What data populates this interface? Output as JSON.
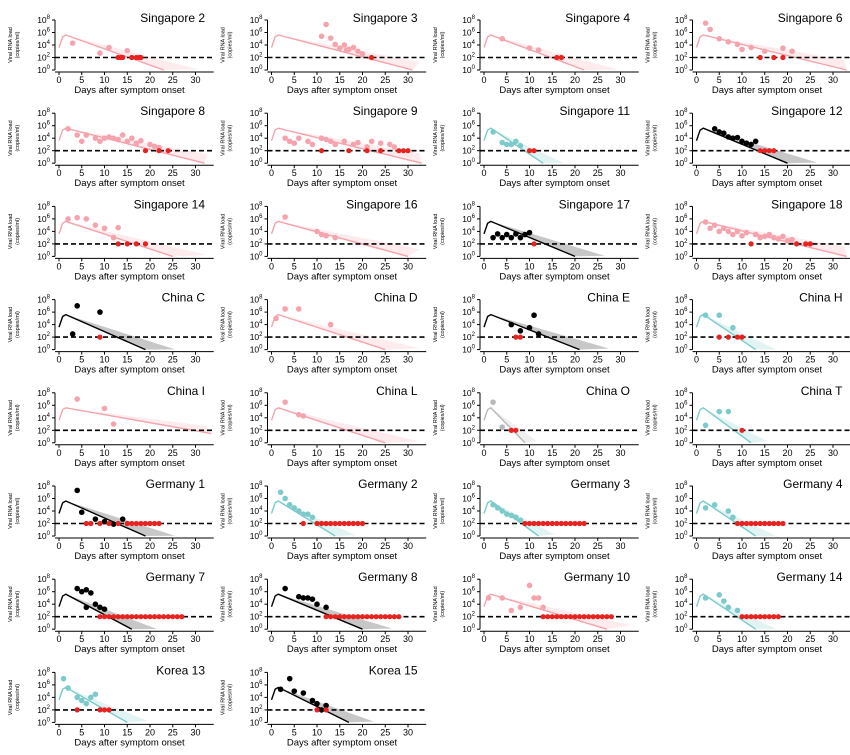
{
  "chart_data": {
    "type": "scatter",
    "title": "",
    "xlabel": "Days after symptom onset",
    "ylabel": "Viral RNA load",
    "ylabel_unit": "(copies/ml)",
    "xlim": [
      0,
      33
    ],
    "ylim_log10": [
      0,
      8
    ],
    "x_ticks": [
      0,
      5,
      10,
      15,
      20,
      25,
      30
    ],
    "y_ticks_log10": [
      0,
      2,
      4,
      6,
      8
    ],
    "y_tick_base": "10",
    "detection_limit_log10": 2,
    "colors": {
      "pink": "#f5a3ac",
      "teal": "#7ccaca",
      "black": "#000000",
      "grey": "#b8b8b8",
      "censored": "#e8231f"
    },
    "panels": [
      {
        "name": "Singapore 2",
        "color": "pink",
        "end": 23,
        "points": [
          [
            3,
            4.3
          ],
          [
            9,
            2.7
          ],
          [
            11,
            3.6
          ],
          [
            15,
            3.1
          ]
        ],
        "censored": [
          13,
          13.6,
          14,
          16,
          17,
          17.6,
          18
        ]
      },
      {
        "name": "Singapore 3",
        "color": "pink",
        "end": 31,
        "points": [
          [
            12,
            7.3
          ],
          [
            11,
            5.4
          ],
          [
            13,
            5.1
          ],
          [
            14,
            4.1
          ],
          [
            15,
            3.5
          ],
          [
            16,
            4
          ],
          [
            16.5,
            3.2
          ],
          [
            17,
            3.3
          ],
          [
            18,
            3.6
          ],
          [
            19,
            3
          ],
          [
            20,
            2.6
          ]
        ],
        "censored": [
          22
        ]
      },
      {
        "name": "Singapore 4",
        "color": "pink",
        "end": 22,
        "points": [
          [
            4,
            5
          ],
          [
            10,
            3.5
          ],
          [
            12,
            3.2
          ]
        ],
        "censored": [
          16,
          17
        ]
      },
      {
        "name": "Singapore 6",
        "color": "pink",
        "end": 33,
        "points": [
          [
            2,
            7.5
          ],
          [
            3,
            6.5
          ],
          [
            5,
            5
          ],
          [
            7,
            4.5
          ],
          [
            9,
            4.1
          ],
          [
            10,
            3.3
          ],
          [
            12,
            3.6
          ],
          [
            15,
            3
          ],
          [
            19,
            3.5
          ],
          [
            21,
            3
          ]
        ],
        "censored": [
          14,
          17,
          19
        ]
      },
      {
        "name": "Singapore 8",
        "color": "pink",
        "end": 32,
        "points": [
          [
            2,
            5.5
          ],
          [
            4,
            4.5
          ],
          [
            5,
            3.5
          ],
          [
            6,
            4.5
          ],
          [
            8,
            4
          ],
          [
            9,
            3.5
          ],
          [
            10,
            4
          ],
          [
            11,
            4.2
          ],
          [
            12,
            4
          ],
          [
            13,
            3.8
          ],
          [
            14,
            4.5
          ],
          [
            15,
            3.5
          ],
          [
            16,
            4
          ],
          [
            17,
            3.2
          ],
          [
            18,
            3.6
          ],
          [
            20,
            3
          ],
          [
            21,
            2.7
          ],
          [
            22,
            2.5
          ]
        ],
        "censored": [
          19,
          22,
          24
        ]
      },
      {
        "name": "Singapore 9",
        "color": "pink",
        "end": 33,
        "points": [
          [
            3,
            4
          ],
          [
            4,
            3.5
          ],
          [
            5,
            3.2
          ],
          [
            6,
            4
          ],
          [
            8,
            3.5
          ],
          [
            9,
            3
          ],
          [
            11,
            4
          ],
          [
            12,
            3.8
          ],
          [
            13,
            3.5
          ],
          [
            14,
            3
          ],
          [
            16,
            3.5
          ],
          [
            18,
            3
          ],
          [
            19,
            3.3
          ],
          [
            21,
            2.6
          ],
          [
            22,
            3.5
          ],
          [
            24,
            3.2
          ],
          [
            26,
            3
          ],
          [
            27,
            2.6
          ]
        ],
        "censored": [
          11,
          17,
          21,
          24,
          28,
          29,
          30
        ]
      },
      {
        "name": "Singapore 11",
        "color": "teal",
        "end": 13,
        "points": [
          [
            2,
            5
          ],
          [
            4,
            3.3
          ],
          [
            5,
            3
          ],
          [
            6,
            3
          ],
          [
            7,
            3.5
          ],
          [
            8,
            2.8
          ]
        ],
        "censored": [
          10,
          11
        ]
      },
      {
        "name": "Singapore 12",
        "color": "black",
        "end": 20,
        "points": [
          [
            4,
            5.5
          ],
          [
            5,
            5
          ],
          [
            6,
            4.8
          ],
          [
            7,
            4.2
          ],
          [
            8,
            4
          ],
          [
            9,
            4.1
          ],
          [
            10,
            3.5
          ],
          [
            11,
            3.2
          ],
          [
            12,
            3
          ],
          [
            13,
            3.5
          ]
        ],
        "censored": [
          14,
          15,
          16,
          17
        ]
      },
      {
        "name": "Singapore 14",
        "color": "pink",
        "end": 25,
        "points": [
          [
            2,
            6
          ],
          [
            4,
            6.2
          ],
          [
            6,
            6
          ],
          [
            8,
            5
          ],
          [
            10,
            4.5
          ],
          [
            12,
            3
          ],
          [
            13,
            4.6
          ]
        ],
        "censored": [
          13,
          15,
          17,
          19
        ]
      },
      {
        "name": "Singapore 16",
        "color": "pink",
        "end": 30,
        "points": [
          [
            3,
            6.3
          ],
          [
            10,
            4
          ],
          [
            11,
            3.5
          ],
          [
            12,
            3.3
          ],
          [
            14,
            3
          ]
        ],
        "censored": []
      },
      {
        "name": "Singapore 17",
        "color": "black",
        "end": 20,
        "points": [
          [
            2,
            3
          ],
          [
            3,
            3.6
          ],
          [
            4,
            3
          ],
          [
            5,
            3.5
          ],
          [
            6,
            3
          ],
          [
            7,
            3.6
          ],
          [
            8,
            3
          ],
          [
            9,
            3.5
          ],
          [
            10,
            3.8
          ]
        ],
        "censored": [
          11
        ]
      },
      {
        "name": "Singapore 18",
        "color": "pink",
        "end": 33,
        "points": [
          [
            2,
            5.5
          ],
          [
            3,
            4.5
          ],
          [
            4,
            5
          ],
          [
            5,
            4
          ],
          [
            6,
            4.5
          ],
          [
            7,
            4
          ],
          [
            8,
            3.5
          ],
          [
            9,
            4
          ],
          [
            10,
            3.3
          ],
          [
            11,
            3.8
          ],
          [
            13,
            3.5
          ],
          [
            14,
            3
          ],
          [
            15,
            3.2
          ],
          [
            16,
            3.5
          ],
          [
            17,
            3
          ],
          [
            18,
            2.8
          ],
          [
            19,
            3.2
          ],
          [
            20,
            2.5
          ],
          [
            21,
            2.7
          ]
        ],
        "censored": [
          12,
          22,
          24,
          25
        ]
      },
      {
        "name": "China C",
        "color": "black",
        "end": 19,
        "points": [
          [
            3,
            2.5
          ],
          [
            4,
            7
          ],
          [
            9,
            6
          ]
        ],
        "censored": [
          9
        ]
      },
      {
        "name": "China D",
        "color": "pink",
        "end": 25,
        "points": [
          [
            1,
            5
          ],
          [
            3,
            6.5
          ],
          [
            6,
            6.5
          ],
          [
            13,
            4
          ]
        ],
        "censored": []
      },
      {
        "name": "China E",
        "color": "black",
        "end": 21,
        "points": [
          [
            6,
            4
          ],
          [
            8,
            3
          ],
          [
            10,
            3.5
          ],
          [
            11,
            5.5
          ],
          [
            12,
            2.5
          ]
        ],
        "censored": [
          7,
          8
        ]
      },
      {
        "name": "China H",
        "color": "teal",
        "end": 13,
        "points": [
          [
            2,
            5.5
          ],
          [
            5,
            5.5
          ],
          [
            8,
            3.5
          ]
        ],
        "censored": [
          5,
          7,
          9,
          10
        ]
      },
      {
        "name": "China I",
        "color": "pink",
        "end": 45,
        "points": [
          [
            4,
            7
          ],
          [
            10,
            5.5
          ],
          [
            12,
            3
          ]
        ],
        "censored": []
      },
      {
        "name": "China L",
        "color": "pink",
        "end": 25,
        "points": [
          [
            3,
            6.5
          ],
          [
            6,
            4.5
          ],
          [
            7,
            4.3
          ]
        ],
        "censored": []
      },
      {
        "name": "China O",
        "color": "grey",
        "end": 9,
        "points": [
          [
            2,
            6.5
          ],
          [
            4,
            2.5
          ],
          [
            6,
            2
          ]
        ],
        "censored": [
          6,
          7
        ]
      },
      {
        "name": "China T",
        "color": "teal",
        "end": 12,
        "points": [
          [
            2,
            2.8
          ],
          [
            5,
            5
          ],
          [
            7,
            5
          ]
        ],
        "censored": [
          10
        ]
      },
      {
        "name": "Germany 1",
        "color": "black",
        "end": 19,
        "points": [
          [
            4,
            7.3
          ],
          [
            5,
            3.8
          ],
          [
            8,
            2.7
          ],
          [
            10,
            2.3
          ],
          [
            12,
            1.9
          ],
          [
            14,
            2.7
          ]
        ],
        "censored": [
          6,
          7,
          9,
          11,
          13,
          15,
          16,
          17,
          18,
          19,
          20,
          21,
          22
        ]
      },
      {
        "name": "Germany 2",
        "color": "teal",
        "end": 14,
        "points": [
          [
            2,
            7
          ],
          [
            3,
            6
          ],
          [
            4,
            5
          ],
          [
            5,
            4.5
          ],
          [
            6,
            4
          ],
          [
            7,
            3.5
          ],
          [
            8,
            3.5
          ],
          [
            9,
            3
          ]
        ],
        "censored": [
          7,
          10,
          11,
          12,
          13,
          14,
          15,
          16,
          17,
          18,
          19,
          20
        ]
      },
      {
        "name": "Germany 3",
        "color": "teal",
        "end": 12,
        "points": [
          [
            2,
            5
          ],
          [
            3,
            4.5
          ],
          [
            4,
            4
          ],
          [
            5,
            3.5
          ],
          [
            6,
            3.3
          ],
          [
            7,
            3
          ],
          [
            8,
            2.5
          ]
        ],
        "censored": [
          9,
          10,
          11,
          12,
          13,
          14,
          15,
          16,
          17,
          18,
          19,
          20,
          21,
          22
        ]
      },
      {
        "name": "Germany 4",
        "color": "teal",
        "end": 13,
        "points": [
          [
            2,
            4.5
          ],
          [
            4,
            5
          ],
          [
            7,
            4
          ],
          [
            8,
            3
          ]
        ],
        "censored": [
          9,
          10,
          11,
          12,
          13,
          14,
          15,
          16,
          17,
          18,
          19
        ]
      },
      {
        "name": "Germany 7",
        "color": "black",
        "end": 16,
        "points": [
          [
            4,
            6.5
          ],
          [
            5,
            6
          ],
          [
            6,
            6.3
          ],
          [
            7,
            5.8
          ],
          [
            6,
            3.5
          ],
          [
            8,
            4
          ],
          [
            9,
            3.5
          ],
          [
            10,
            3.2
          ]
        ],
        "censored": [
          9,
          10,
          11,
          12,
          13,
          14,
          15,
          16,
          17,
          18,
          19,
          20,
          21,
          22,
          23,
          24,
          25,
          26,
          27
        ]
      },
      {
        "name": "Germany 8",
        "color": "black",
        "end": 20,
        "points": [
          [
            3,
            6.5
          ],
          [
            6,
            5.2
          ],
          [
            7,
            5
          ],
          [
            8,
            5
          ],
          [
            9,
            4.8
          ],
          [
            10,
            4
          ],
          [
            12,
            3.5
          ]
        ],
        "censored": [
          12,
          13,
          14,
          15,
          16,
          17,
          18,
          19,
          20,
          21,
          22,
          23,
          24,
          25,
          26,
          27,
          28
        ]
      },
      {
        "name": "Germany 10",
        "color": "pink",
        "end": 27,
        "points": [
          [
            1,
            5
          ],
          [
            4,
            5
          ],
          [
            6,
            3
          ],
          [
            8,
            3.5
          ],
          [
            10,
            7
          ],
          [
            11,
            5
          ],
          [
            12,
            5
          ],
          [
            13,
            3.5
          ]
        ],
        "censored": [
          13,
          14,
          15,
          16,
          17,
          18,
          19,
          20,
          21,
          22,
          23,
          24,
          25,
          26,
          27,
          28
        ]
      },
      {
        "name": "Germany 14",
        "color": "teal",
        "end": 13,
        "points": [
          [
            2,
            5
          ],
          [
            5,
            5.5
          ],
          [
            6,
            4.5
          ],
          [
            7,
            3.5
          ],
          [
            9,
            3
          ]
        ],
        "censored": [
          10,
          11,
          12,
          13,
          14,
          15,
          16,
          17,
          18
        ]
      },
      {
        "name": "Korea 13",
        "color": "teal",
        "end": 15,
        "points": [
          [
            1,
            7
          ],
          [
            2,
            5.5
          ],
          [
            4,
            4
          ],
          [
            5,
            3.5
          ],
          [
            6,
            3
          ],
          [
            7,
            4
          ],
          [
            8,
            4.5
          ]
        ],
        "censored": [
          4,
          9,
          10,
          11
        ]
      },
      {
        "name": "Korea 15",
        "color": "black",
        "end": 17,
        "points": [
          [
            2,
            5.3
          ],
          [
            4,
            7
          ],
          [
            5,
            5
          ],
          [
            7,
            4.7
          ],
          [
            9,
            3.5
          ],
          [
            10,
            3
          ],
          [
            12,
            2.7
          ],
          [
            11,
            2
          ]
        ],
        "censored": [
          10,
          12
        ]
      }
    ]
  }
}
